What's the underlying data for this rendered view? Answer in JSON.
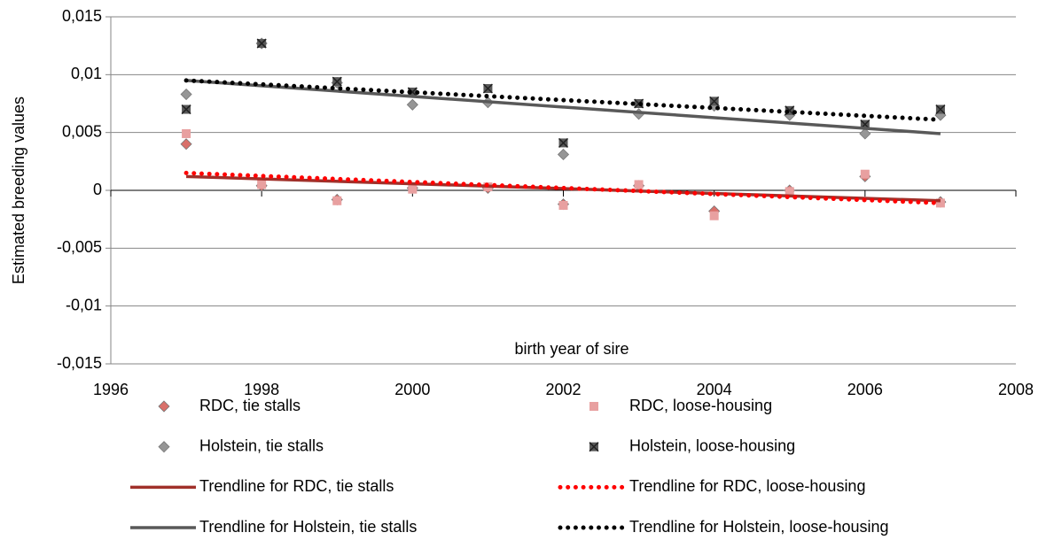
{
  "chart_data": {
    "type": "scatter",
    "y_label": "Estimated breeding values",
    "x_label": "birth year of sire",
    "xlim": [
      1996,
      2008
    ],
    "xticks": [
      1996,
      1998,
      2000,
      2002,
      2004,
      2006,
      2008
    ],
    "ylim": [
      -0.015,
      0.015
    ],
    "yticks": [
      {
        "value": -0.015,
        "label": "-0,015"
      },
      {
        "value": -0.01,
        "label": "-0,01"
      },
      {
        "value": -0.005,
        "label": "-0,005"
      },
      0,
      {
        "value": 0.005,
        "label": "0,005"
      },
      {
        "value": 0.01,
        "label": "0,01"
      },
      {
        "value": 0.015,
        "label": "0,015"
      }
    ],
    "grid": true,
    "legend": "bottom",
    "x": [
      1997,
      1998,
      1999,
      2000,
      2001,
      2002,
      2003,
      2004,
      2005,
      2006,
      2007
    ],
    "series": [
      {
        "name": "RDC, tie stalls",
        "color": "#d9706a",
        "marker": "diamond",
        "values": [
          0.004,
          0.0004,
          -0.0008,
          0.0002,
          0.0002,
          -0.0012,
          0.0004,
          -0.0018,
          0,
          0.0012,
          -0.001
        ]
      },
      {
        "name": "RDC, loose-housing",
        "color": "#e8a0a0",
        "marker": "square",
        "values": [
          0.0049,
          0.0005,
          -0.0009,
          0.0001,
          0.0003,
          -0.0013,
          0.0005,
          -0.0022,
          -0.0001,
          0.0014,
          -0.0011
        ]
      },
      {
        "name": "Holstein, tie stalls",
        "color": "#969696",
        "marker": "diamond",
        "values": [
          0.0083,
          0.0127,
          0.0093,
          0.0074,
          0.0076,
          0.0031,
          0.0066,
          0.0073,
          0.0065,
          0.0049,
          0.0065
        ]
      },
      {
        "name": "Holstein, loose-housing",
        "color": "#595959",
        "marker": "xsquare",
        "values": [
          0.007,
          0.0127,
          0.0094,
          0.0085,
          0.0088,
          0.0041,
          0.0075,
          0.0077,
          0.0069,
          0.0057,
          0.007
        ]
      },
      {
        "name": "Trendline for RDC, tie stalls",
        "color": "#a0302a",
        "line": "solid",
        "x": [
          1997,
          2007
        ],
        "values": [
          0.0012,
          -0.0009
        ]
      },
      {
        "name": "Trendline for RDC, loose-housing",
        "color": "#ff0000",
        "line": "dotted",
        "x": [
          1997,
          2007
        ],
        "values": [
          0.0015,
          -0.0011
        ]
      },
      {
        "name": "Trendline for Holstein, tie stalls",
        "color": "#595959",
        "line": "solid",
        "x": [
          1997,
          2007
        ],
        "values": [
          0.0095,
          0.0049
        ]
      },
      {
        "name": "Trendline for Holstein, loose-housing",
        "color": "#000000",
        "line": "dotted",
        "x": [
          1997,
          2007
        ],
        "values": [
          0.0095,
          0.0061
        ]
      }
    ]
  }
}
